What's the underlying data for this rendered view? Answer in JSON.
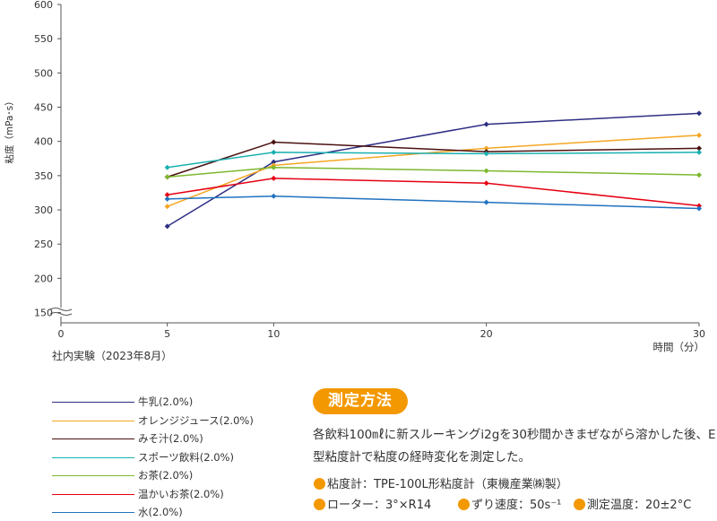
{
  "chart_data": {
    "type": "line",
    "ylabel": "粘度（mPa･s）",
    "xlabel": "時間（分）",
    "x": [
      5,
      10,
      20,
      30
    ],
    "xticks": [
      0,
      5,
      10,
      20,
      30
    ],
    "yticks": [
      150,
      200,
      250,
      300,
      350,
      400,
      450,
      500,
      550,
      600
    ],
    "ylim": [
      135,
      600
    ],
    "xlim": [
      0,
      30
    ],
    "axis_break": true,
    "grid": false,
    "series": [
      {
        "name": "牛乳(2.0%)",
        "color": "#2d2e83",
        "values": [
          276,
          370,
          425,
          441
        ]
      },
      {
        "name": "オレンジジュース(2.0%)",
        "color": "#f5a623",
        "values": [
          305,
          365,
          390,
          409
        ]
      },
      {
        "name": "みそ汁(2.0%)",
        "color": "#4a1010",
        "values": [
          348,
          399,
          385,
          390
        ]
      },
      {
        "name": "スポーツ飲料(2.0%)",
        "color": "#1ab0b0",
        "values": [
          362,
          384,
          382,
          384
        ]
      },
      {
        "name": "お茶(2.0%)",
        "color": "#7cb82f",
        "values": [
          348,
          362,
          357,
          351
        ]
      },
      {
        "name": "温かいお茶(2.0%)",
        "color": "#e60012",
        "values": [
          322,
          346,
          339,
          306
        ]
      },
      {
        "name": "水(2.0%)",
        "color": "#1f72c0",
        "values": [
          316,
          320,
          311,
          302
        ]
      }
    ]
  },
  "note": "社内実験（2023年8月）",
  "method": {
    "title": "測定方法",
    "description": "各飲料100㎖に新スルーキングi2gを30秒間かきまぜながら溶かした後、E型粘度計で粘度の経時変化を測定した。",
    "viscometer": "粘度計：TPE-100L形粘度計（東機産業㈱製）",
    "rotor": "ローター：3°×R14",
    "shear_rate": "ずり速度：50s⁻¹",
    "temperature": "測定温度：20±2°C"
  }
}
